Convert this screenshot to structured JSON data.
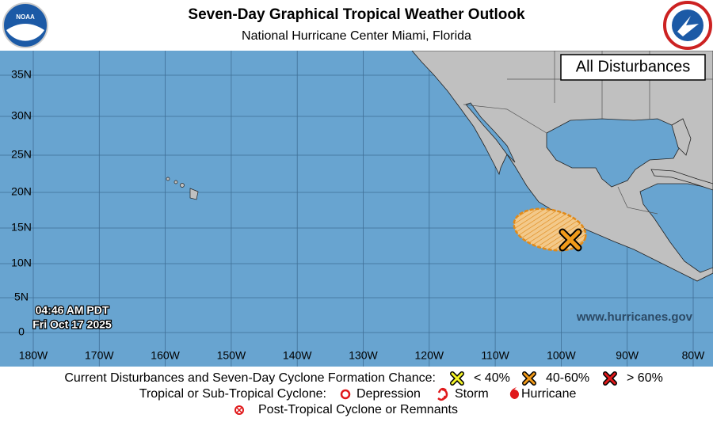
{
  "header": {
    "title": "Seven-Day Graphical Tropical Weather Outlook",
    "subtitle": "National Hurricane Center  Miami, Florida"
  },
  "map": {
    "panel_label": "All Disturbances",
    "timestamp": [
      "04:46 AM PDT",
      "Fri Oct 17 2025"
    ],
    "website": "www.hurricanes.gov",
    "lat_labels": [
      "35N",
      "30N",
      "25N",
      "20N",
      "15N",
      "10N",
      "5N",
      "0"
    ],
    "lon_labels": [
      "180W",
      "170W",
      "160W",
      "150W",
      "140W",
      "130W",
      "120W",
      "110W",
      "100W",
      "90W",
      "80W"
    ]
  },
  "legend": {
    "disturbances_label": "Current Disturbances and Seven-Day Cyclone Formation Chance:",
    "chances": [
      "< 40%",
      "40-60%",
      "> 60%"
    ],
    "cyclone_label": "Tropical or Sub-Tropical Cyclone:",
    "cyclone_types": [
      "Depression",
      "Storm",
      "Hurricane"
    ],
    "post_tropical": "Post-Tropical Cyclone or Remnants"
  }
}
